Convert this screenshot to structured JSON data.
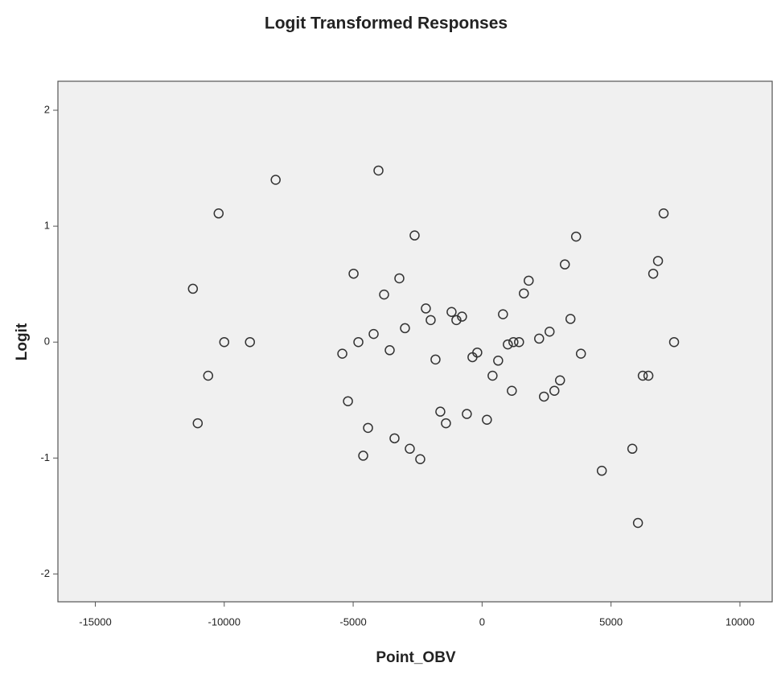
{
  "chart_data": {
    "type": "scatter",
    "title": "Logit Transformed Responses",
    "x_label": "Point_OBV",
    "y_label": "Logit",
    "xlim": [
      -16450,
      11250
    ],
    "ylim": [
      -2.24,
      2.25
    ],
    "xticks": [
      -15000,
      -10000,
      -5000,
      0,
      5000,
      10000
    ],
    "yticks": [
      -2,
      -1,
      0,
      1,
      2
    ],
    "series": [
      {
        "color": "#333333",
        "x": [
          -11215,
          -10218,
          -8006,
          -4019,
          -10000,
          -9003,
          -10623,
          -11028,
          -2617,
          -4984,
          -3209,
          -3801,
          -2181,
          -1994,
          -1184,
          -997,
          -779,
          -2991,
          -4206,
          -4798,
          -5421,
          -3583,
          -1807,
          -374,
          -187,
          -5202,
          -4424,
          -4611,
          -3396,
          -2804,
          -2399,
          -1620,
          -1402,
          -592,
          187,
          405,
          623,
          997,
          1215,
          1433,
          810,
          1620,
          1807,
          3645,
          3209,
          3427,
          2617,
          2212,
          1153,
          2399,
          2804,
          3022,
          3832,
          6231,
          6449,
          6636,
          6822,
          7040,
          7445,
          5826,
          4642,
          6044
        ],
        "values": [
          0.46,
          1.11,
          1.4,
          1.48,
          0,
          0,
          -0.29,
          -0.7,
          0.92,
          0.59,
          0.55,
          0.41,
          0.29,
          0.19,
          0.26,
          0.19,
          0.22,
          0.12,
          0.07,
          0,
          -0.1,
          -0.07,
          -0.15,
          -0.13,
          -0.09,
          -0.51,
          -0.74,
          -0.98,
          -0.83,
          -0.92,
          -1.01,
          -0.6,
          -0.7,
          -0.62,
          -0.67,
          -0.29,
          -0.16,
          -0.02,
          0,
          0,
          0.24,
          0.42,
          0.53,
          0.91,
          0.67,
          0.2,
          0.09,
          0.03,
          -0.42,
          -0.47,
          -0.42,
          -0.33,
          -0.1,
          -0.29,
          -0.29,
          0.59,
          0.7,
          1.11,
          0,
          -0.92,
          -1.11,
          -1.56
        ]
      }
    ]
  }
}
